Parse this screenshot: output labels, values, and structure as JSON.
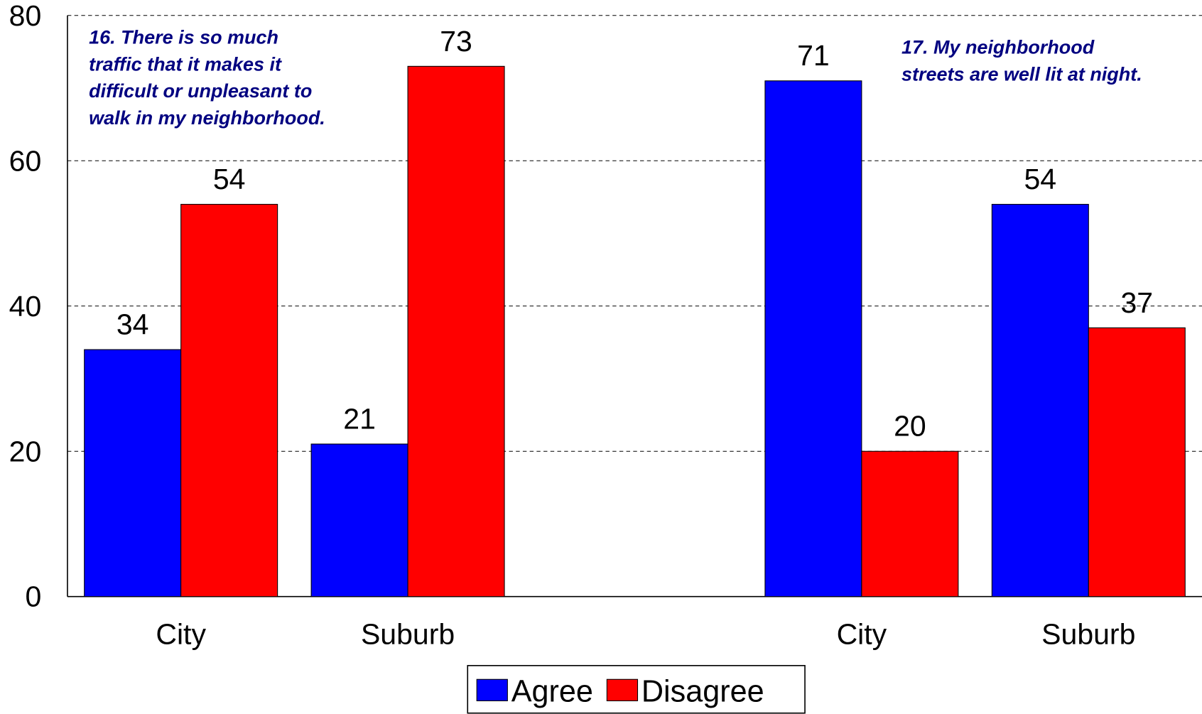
{
  "chart_data": {
    "type": "bar",
    "categories": [
      "City",
      "Suburb",
      null,
      "City",
      "Suburb"
    ],
    "series": [
      {
        "name": "Agree",
        "color": "#0000ff",
        "values": [
          34,
          21,
          null,
          71,
          54
        ]
      },
      {
        "name": "Disagree",
        "color": "#ff0000",
        "values": [
          54,
          73,
          null,
          20,
          37
        ]
      }
    ],
    "ylim": [
      0,
      80
    ],
    "yticks": [
      0,
      20,
      40,
      60,
      80
    ],
    "grid": true,
    "legend": "bottom",
    "annotations": [
      {
        "lines": [
          "16.  There is so much",
          "traffic that it makes it",
          "difficult or unpleasant to",
          "walk in my neighborhood."
        ]
      },
      {
        "lines": [
          "17.  My neighborhood",
          "streets are well lit at night."
        ]
      }
    ]
  }
}
